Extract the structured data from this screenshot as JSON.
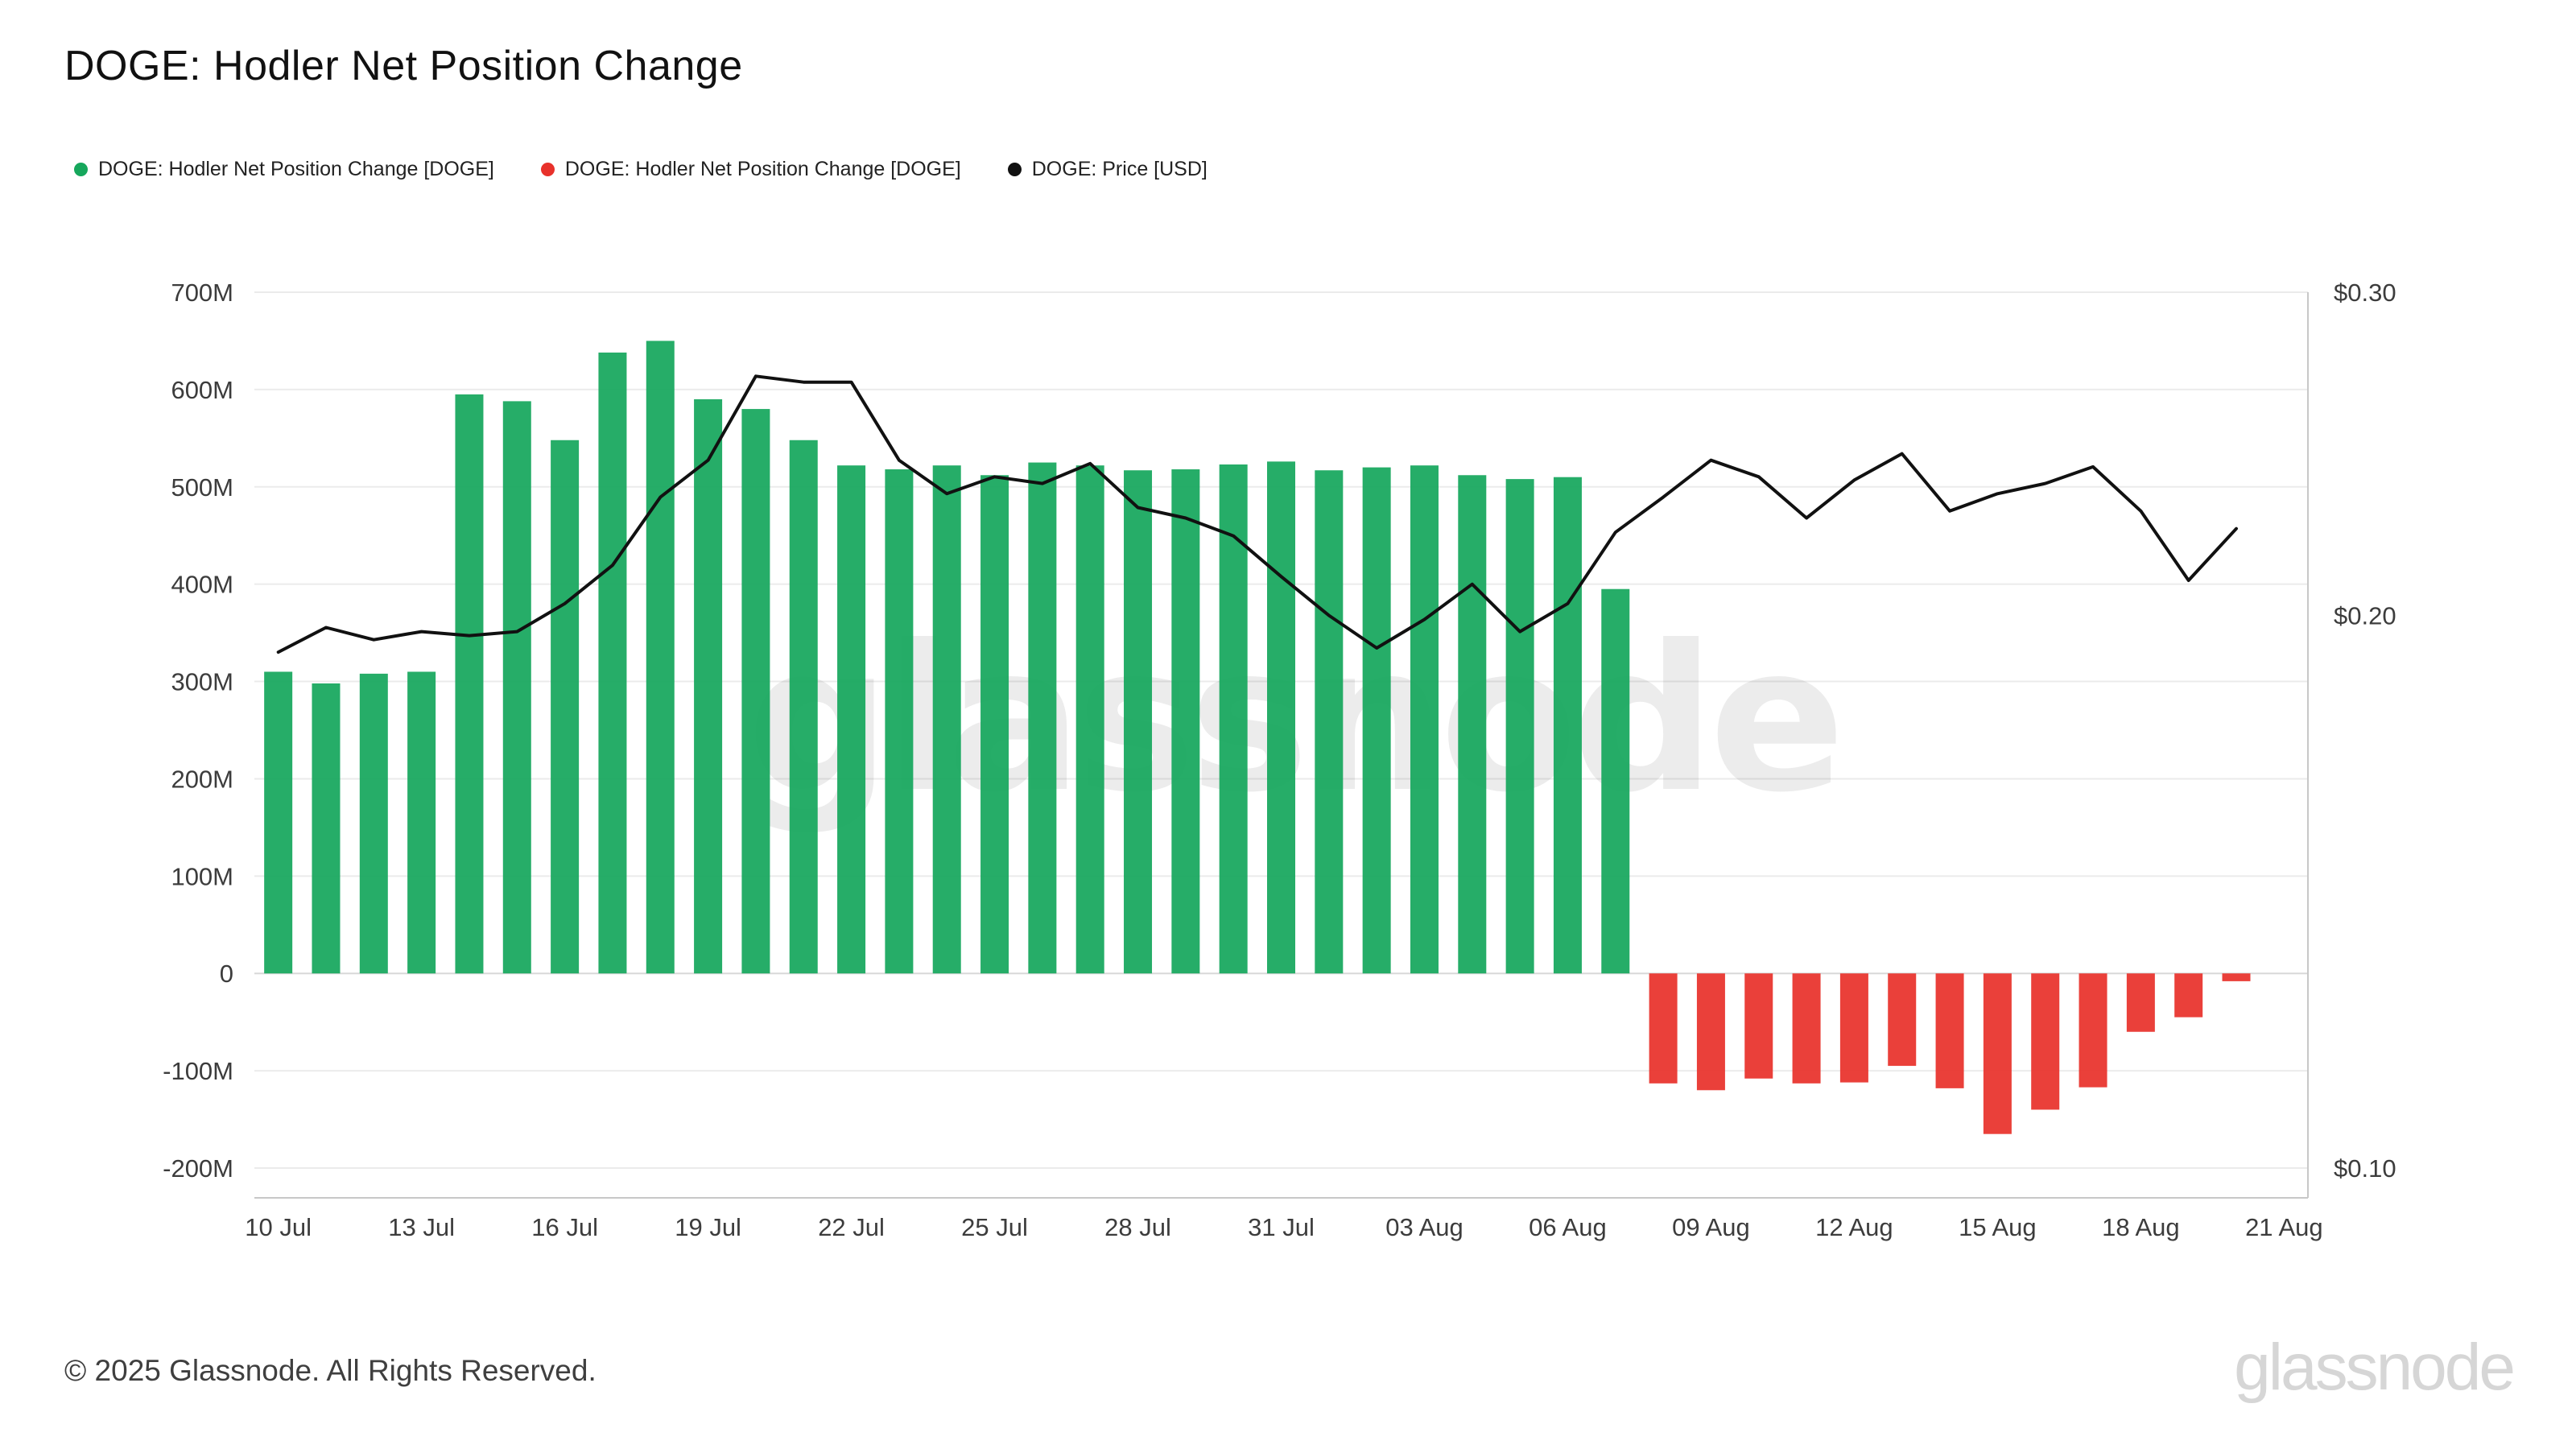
{
  "title": "DOGE: Hodler Net Position Change",
  "legend": [
    {
      "label": "DOGE: Hodler Net Position Change [DOGE]",
      "color": "#16a75c"
    },
    {
      "label": "DOGE: Hodler Net Position Change [DOGE]",
      "color": "#e8312b"
    },
    {
      "label": "DOGE: Price [USD]",
      "color": "#111111"
    }
  ],
  "watermark": "glassnode",
  "footer": {
    "copyright": "© 2025 Glassnode. All Rights Reserved.",
    "brand": "glassnode"
  },
  "chart_data": {
    "type": "bar",
    "title": "DOGE: Hodler Net Position Change",
    "x": [
      "10 Jul",
      "11 Jul",
      "12 Jul",
      "13 Jul",
      "14 Jul",
      "15 Jul",
      "16 Jul",
      "17 Jul",
      "18 Jul",
      "19 Jul",
      "20 Jul",
      "21 Jul",
      "22 Jul",
      "23 Jul",
      "24 Jul",
      "25 Jul",
      "26 Jul",
      "27 Jul",
      "28 Jul",
      "29 Jul",
      "30 Jul",
      "31 Jul",
      "01 Aug",
      "02 Aug",
      "03 Aug",
      "04 Aug",
      "05 Aug",
      "06 Aug",
      "07 Aug",
      "08 Aug",
      "09 Aug",
      "10 Aug",
      "11 Aug",
      "12 Aug",
      "13 Aug",
      "14 Aug",
      "15 Aug",
      "16 Aug",
      "17 Aug",
      "18 Aug",
      "19 Aug",
      "20 Aug"
    ],
    "series": [
      {
        "name": "DOGE: Hodler Net Position Change [DOGE]",
        "type": "bar",
        "axis": "left",
        "unit": "M DOGE",
        "positive_color": "#16a75c",
        "negative_color": "#e8312b",
        "values": [
          310,
          298,
          308,
          310,
          595,
          588,
          548,
          638,
          650,
          590,
          580,
          548,
          522,
          518,
          522,
          512,
          525,
          522,
          517,
          518,
          523,
          526,
          517,
          520,
          522,
          512,
          508,
          510,
          395,
          -113,
          -120,
          -108,
          -113,
          -112,
          -95,
          -118,
          -165,
          -140,
          -117,
          -60,
          -45,
          -8
        ]
      },
      {
        "name": "DOGE: Price [USD]",
        "type": "line",
        "axis": "right",
        "unit": "USD",
        "color": "#111111",
        "values": [
          0.191,
          0.197,
          0.194,
          0.196,
          0.195,
          0.196,
          0.203,
          0.213,
          0.232,
          0.243,
          0.27,
          0.268,
          0.268,
          0.243,
          0.233,
          0.238,
          0.236,
          0.242,
          0.229,
          0.226,
          0.221,
          0.21,
          0.2,
          0.192,
          0.199,
          0.208,
          0.196,
          0.203,
          0.222,
          0.232,
          0.243,
          0.238,
          0.226,
          0.237,
          0.245,
          0.228,
          0.233,
          0.236,
          0.241,
          0.228,
          0.209,
          0.223
        ]
      }
    ],
    "left_axis": {
      "unit": "M",
      "range": [
        -200,
        700
      ],
      "ticks": [
        "700M",
        "600M",
        "500M",
        "400M",
        "300M",
        "200M",
        "100M",
        "0",
        "-100M",
        "-200M"
      ],
      "tick_values": [
        700,
        600,
        500,
        400,
        300,
        200,
        100,
        0,
        -100,
        -200
      ],
      "grid": true
    },
    "right_axis": {
      "unit": "USD",
      "scale": "log",
      "range": [
        0.1,
        0.3
      ],
      "ticks": [
        "$0.30",
        "$0.20",
        "$0.10"
      ],
      "tick_values": [
        0.3,
        0.2,
        0.1
      ],
      "grid": false
    },
    "x_ticks": [
      {
        "label": "10 Jul",
        "i": 0
      },
      {
        "label": "13 Jul",
        "i": 3
      },
      {
        "label": "16 Jul",
        "i": 6
      },
      {
        "label": "19 Jul",
        "i": 9
      },
      {
        "label": "22 Jul",
        "i": 12
      },
      {
        "label": "25 Jul",
        "i": 15
      },
      {
        "label": "28 Jul",
        "i": 18
      },
      {
        "label": "31 Jul",
        "i": 21
      },
      {
        "label": "03 Aug",
        "i": 24
      },
      {
        "label": "06 Aug",
        "i": 27
      },
      {
        "label": "09 Aug",
        "i": 30
      },
      {
        "label": "12 Aug",
        "i": 33
      },
      {
        "label": "15 Aug",
        "i": 36
      },
      {
        "label": "18 Aug",
        "i": 39
      },
      {
        "label": "21 Aug",
        "i": 42
      }
    ],
    "legend_position": "top-left",
    "grid": "horizontal"
  },
  "style": {
    "grid_color": "#ebebeb",
    "zero_line_color": "#d8d8d8",
    "axis_border_color": "#c8c8c8",
    "tick_label_color": "#3c3c3c",
    "watermark_color": "#000000"
  }
}
